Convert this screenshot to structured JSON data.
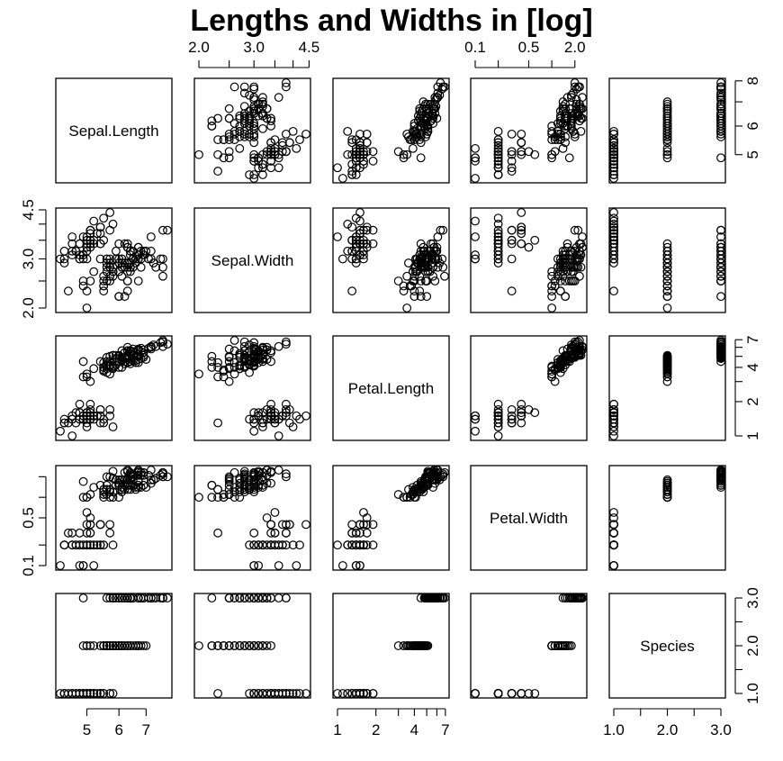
{
  "chart_data": {
    "type": "scatter",
    "title": "Lengths and Widths in [log]",
    "variables": [
      "Sepal.Length",
      "Sepal.Width",
      "Petal.Length",
      "Petal.Width",
      "Species"
    ],
    "log_scale": [
      true,
      true,
      true,
      true,
      false
    ],
    "ranges": [
      [
        4.3,
        7.9
      ],
      [
        2.0,
        4.4
      ],
      [
        1.0,
        6.9
      ],
      [
        0.1,
        2.5
      ],
      [
        1,
        3
      ]
    ],
    "axis_ticks": [
      {
        "side": "bottom",
        "values": [
          5,
          6,
          7
        ],
        "labels": [
          "5",
          "6",
          "7"
        ]
      },
      {
        "side": "top",
        "values": [
          2.0,
          2.5,
          3.0,
          3.5,
          4.0,
          4.5
        ],
        "labels": [
          "2.0",
          "",
          "3.0",
          "",
          "",
          "4.5"
        ]
      },
      {
        "side": "bottom",
        "values": [
          1,
          2,
          3,
          4,
          5,
          6,
          7
        ],
        "labels": [
          "1",
          "2",
          "",
          "4",
          "",
          "",
          "7"
        ]
      },
      {
        "side": "top",
        "values": [
          0.1,
          0.2,
          0.5,
          1.0,
          2.0
        ],
        "labels": [
          "0.1",
          "",
          "0.5",
          "",
          "2.0"
        ]
      },
      {
        "side": "bottom",
        "values": [
          1.0,
          1.5,
          2.0,
          2.5,
          3.0
        ],
        "labels": [
          "1.0",
          "",
          "2.0",
          "",
          "3.0"
        ]
      }
    ],
    "row_ticks": [
      {
        "side": "right",
        "values": [
          5,
          6,
          7,
          8
        ],
        "labels": [
          "5",
          "6",
          "",
          "8"
        ]
      },
      {
        "side": "left",
        "values": [
          2.0,
          2.5,
          3.0,
          3.5,
          4.0,
          4.5
        ],
        "labels": [
          "2.0",
          "",
          "3.0",
          "",
          "",
          "4.5"
        ]
      },
      {
        "side": "right",
        "values": [
          1,
          2,
          3,
          4,
          5,
          6,
          7
        ],
        "labels": [
          "1",
          "2",
          "",
          "4",
          "",
          "",
          "7"
        ]
      },
      {
        "side": "left",
        "values": [
          0.1,
          0.2,
          0.5,
          1.0,
          2.0
        ],
        "labels": [
          "0.1",
          "",
          "0.5",
          "",
          ""
        ]
      },
      {
        "side": "right",
        "values": [
          1.0,
          1.5,
          2.0,
          2.5,
          3.0
        ],
        "labels": [
          "1.0",
          "",
          "2.0",
          "",
          "3.0"
        ]
      }
    ],
    "records": [
      [
        5.1,
        3.5,
        1.4,
        0.2,
        1
      ],
      [
        4.9,
        3.0,
        1.4,
        0.2,
        1
      ],
      [
        4.7,
        3.2,
        1.3,
        0.2,
        1
      ],
      [
        4.6,
        3.1,
        1.5,
        0.2,
        1
      ],
      [
        5.0,
        3.6,
        1.4,
        0.2,
        1
      ],
      [
        5.4,
        3.9,
        1.7,
        0.4,
        1
      ],
      [
        4.6,
        3.4,
        1.4,
        0.3,
        1
      ],
      [
        5.0,
        3.4,
        1.5,
        0.2,
        1
      ],
      [
        4.4,
        2.9,
        1.4,
        0.2,
        1
      ],
      [
        4.9,
        3.1,
        1.5,
        0.1,
        1
      ],
      [
        5.4,
        3.7,
        1.5,
        0.2,
        1
      ],
      [
        4.8,
        3.4,
        1.6,
        0.2,
        1
      ],
      [
        4.8,
        3.0,
        1.4,
        0.1,
        1
      ],
      [
        4.3,
        3.0,
        1.1,
        0.1,
        1
      ],
      [
        5.8,
        4.0,
        1.2,
        0.2,
        1
      ],
      [
        5.7,
        4.4,
        1.5,
        0.4,
        1
      ],
      [
        5.4,
        3.9,
        1.3,
        0.4,
        1
      ],
      [
        5.1,
        3.5,
        1.4,
        0.3,
        1
      ],
      [
        5.7,
        3.8,
        1.7,
        0.3,
        1
      ],
      [
        5.1,
        3.8,
        1.5,
        0.3,
        1
      ],
      [
        5.4,
        3.4,
        1.7,
        0.2,
        1
      ],
      [
        5.1,
        3.7,
        1.5,
        0.4,
        1
      ],
      [
        4.6,
        3.6,
        1.0,
        0.2,
        1
      ],
      [
        5.1,
        3.3,
        1.7,
        0.5,
        1
      ],
      [
        4.8,
        3.4,
        1.9,
        0.2,
        1
      ],
      [
        5.0,
        3.0,
        1.6,
        0.2,
        1
      ],
      [
        5.0,
        3.4,
        1.6,
        0.4,
        1
      ],
      [
        5.2,
        3.5,
        1.5,
        0.2,
        1
      ],
      [
        5.2,
        3.4,
        1.4,
        0.2,
        1
      ],
      [
        4.7,
        3.2,
        1.6,
        0.2,
        1
      ],
      [
        4.8,
        3.1,
        1.6,
        0.2,
        1
      ],
      [
        5.4,
        3.4,
        1.5,
        0.4,
        1
      ],
      [
        5.2,
        4.1,
        1.5,
        0.1,
        1
      ],
      [
        5.5,
        4.2,
        1.4,
        0.2,
        1
      ],
      [
        4.9,
        3.1,
        1.5,
        0.2,
        1
      ],
      [
        5.0,
        3.2,
        1.2,
        0.2,
        1
      ],
      [
        5.5,
        3.5,
        1.3,
        0.2,
        1
      ],
      [
        4.9,
        3.6,
        1.4,
        0.1,
        1
      ],
      [
        4.4,
        3.0,
        1.3,
        0.2,
        1
      ],
      [
        5.1,
        3.4,
        1.5,
        0.2,
        1
      ],
      [
        5.0,
        3.5,
        1.3,
        0.3,
        1
      ],
      [
        4.5,
        2.3,
        1.3,
        0.3,
        1
      ],
      [
        4.4,
        3.2,
        1.3,
        0.2,
        1
      ],
      [
        5.0,
        3.5,
        1.6,
        0.6,
        1
      ],
      [
        5.1,
        3.8,
        1.9,
        0.4,
        1
      ],
      [
        4.8,
        3.0,
        1.4,
        0.3,
        1
      ],
      [
        5.1,
        3.8,
        1.6,
        0.2,
        1
      ],
      [
        4.6,
        3.2,
        1.4,
        0.2,
        1
      ],
      [
        5.3,
        3.7,
        1.5,
        0.2,
        1
      ],
      [
        5.0,
        3.3,
        1.4,
        0.2,
        1
      ],
      [
        7.0,
        3.2,
        4.7,
        1.4,
        2
      ],
      [
        6.4,
        3.2,
        4.5,
        1.5,
        2
      ],
      [
        6.9,
        3.1,
        4.9,
        1.5,
        2
      ],
      [
        5.5,
        2.3,
        4.0,
        1.3,
        2
      ],
      [
        6.5,
        2.8,
        4.6,
        1.5,
        2
      ],
      [
        5.7,
        2.8,
        4.5,
        1.3,
        2
      ],
      [
        6.3,
        3.3,
        4.7,
        1.6,
        2
      ],
      [
        4.9,
        2.4,
        3.3,
        1.0,
        2
      ],
      [
        6.6,
        2.9,
        4.6,
        1.3,
        2
      ],
      [
        5.2,
        2.7,
        3.9,
        1.4,
        2
      ],
      [
        5.0,
        2.0,
        3.5,
        1.0,
        2
      ],
      [
        5.9,
        3.0,
        4.2,
        1.5,
        2
      ],
      [
        6.0,
        2.2,
        4.0,
        1.0,
        2
      ],
      [
        6.1,
        2.9,
        4.7,
        1.4,
        2
      ],
      [
        5.6,
        2.9,
        3.6,
        1.3,
        2
      ],
      [
        6.7,
        3.1,
        4.4,
        1.4,
        2
      ],
      [
        5.6,
        3.0,
        4.5,
        1.5,
        2
      ],
      [
        5.8,
        2.7,
        4.1,
        1.0,
        2
      ],
      [
        6.2,
        2.2,
        4.5,
        1.5,
        2
      ],
      [
        5.6,
        2.5,
        3.9,
        1.1,
        2
      ],
      [
        5.9,
        3.2,
        4.8,
        1.8,
        2
      ],
      [
        6.1,
        2.8,
        4.0,
        1.3,
        2
      ],
      [
        6.3,
        2.5,
        4.9,
        1.5,
        2
      ],
      [
        6.1,
        2.8,
        4.7,
        1.2,
        2
      ],
      [
        6.4,
        2.9,
        4.3,
        1.3,
        2
      ],
      [
        6.6,
        3.0,
        4.4,
        1.4,
        2
      ],
      [
        6.8,
        2.8,
        4.8,
        1.4,
        2
      ],
      [
        6.7,
        3.0,
        5.0,
        1.7,
        2
      ],
      [
        6.0,
        2.9,
        4.5,
        1.5,
        2
      ],
      [
        5.7,
        2.6,
        3.5,
        1.0,
        2
      ],
      [
        5.5,
        2.4,
        3.8,
        1.1,
        2
      ],
      [
        5.5,
        2.4,
        3.7,
        1.0,
        2
      ],
      [
        5.8,
        2.7,
        3.9,
        1.2,
        2
      ],
      [
        6.0,
        2.7,
        5.1,
        1.6,
        2
      ],
      [
        5.4,
        3.0,
        4.5,
        1.5,
        2
      ],
      [
        6.0,
        3.4,
        4.5,
        1.6,
        2
      ],
      [
        6.7,
        3.1,
        4.7,
        1.5,
        2
      ],
      [
        6.3,
        2.3,
        4.4,
        1.3,
        2
      ],
      [
        5.6,
        3.0,
        4.1,
        1.3,
        2
      ],
      [
        5.5,
        2.5,
        4.0,
        1.3,
        2
      ],
      [
        5.5,
        2.6,
        4.4,
        1.2,
        2
      ],
      [
        6.1,
        3.0,
        4.6,
        1.4,
        2
      ],
      [
        5.8,
        2.6,
        4.0,
        1.2,
        2
      ],
      [
        5.0,
        2.3,
        3.3,
        1.0,
        2
      ],
      [
        5.6,
        2.7,
        4.2,
        1.3,
        2
      ],
      [
        5.7,
        3.0,
        4.2,
        1.2,
        2
      ],
      [
        5.7,
        2.9,
        4.2,
        1.3,
        2
      ],
      [
        6.2,
        2.9,
        4.3,
        1.3,
        2
      ],
      [
        5.1,
        2.5,
        3.0,
        1.1,
        2
      ],
      [
        5.7,
        2.8,
        4.1,
        1.3,
        2
      ],
      [
        6.3,
        3.3,
        6.0,
        2.5,
        3
      ],
      [
        5.8,
        2.7,
        5.1,
        1.9,
        3
      ],
      [
        7.1,
        3.0,
        5.9,
        2.1,
        3
      ],
      [
        6.3,
        2.9,
        5.6,
        1.8,
        3
      ],
      [
        6.5,
        3.0,
        5.8,
        2.2,
        3
      ],
      [
        7.6,
        3.0,
        6.6,
        2.1,
        3
      ],
      [
        4.9,
        2.5,
        4.5,
        1.7,
        3
      ],
      [
        7.3,
        2.9,
        6.3,
        1.8,
        3
      ],
      [
        6.7,
        2.5,
        5.8,
        1.8,
        3
      ],
      [
        7.2,
        3.6,
        6.1,
        2.5,
        3
      ],
      [
        6.5,
        3.2,
        5.1,
        2.0,
        3
      ],
      [
        6.4,
        2.7,
        5.3,
        1.9,
        3
      ],
      [
        6.8,
        3.0,
        5.5,
        2.1,
        3
      ],
      [
        5.7,
        2.5,
        5.0,
        2.0,
        3
      ],
      [
        5.8,
        2.8,
        5.1,
        2.4,
        3
      ],
      [
        6.4,
        3.2,
        5.3,
        2.3,
        3
      ],
      [
        6.5,
        3.0,
        5.5,
        1.8,
        3
      ],
      [
        7.7,
        3.8,
        6.7,
        2.2,
        3
      ],
      [
        7.7,
        2.6,
        6.9,
        2.3,
        3
      ],
      [
        6.0,
        2.2,
        5.0,
        1.5,
        3
      ],
      [
        6.9,
        3.2,
        5.7,
        2.3,
        3
      ],
      [
        5.6,
        2.8,
        4.9,
        2.0,
        3
      ],
      [
        7.7,
        2.8,
        6.7,
        2.0,
        3
      ],
      [
        6.3,
        2.7,
        4.9,
        1.8,
        3
      ],
      [
        6.7,
        3.3,
        5.7,
        2.1,
        3
      ],
      [
        7.2,
        3.2,
        6.0,
        1.8,
        3
      ],
      [
        6.2,
        2.8,
        4.8,
        1.8,
        3
      ],
      [
        6.1,
        3.0,
        4.9,
        1.8,
        3
      ],
      [
        6.4,
        2.8,
        5.6,
        2.1,
        3
      ],
      [
        7.2,
        3.0,
        5.8,
        1.6,
        3
      ],
      [
        7.4,
        2.8,
        6.1,
        1.9,
        3
      ],
      [
        7.9,
        3.8,
        6.4,
        2.0,
        3
      ],
      [
        6.4,
        2.8,
        5.6,
        2.2,
        3
      ],
      [
        6.3,
        2.8,
        5.1,
        1.5,
        3
      ],
      [
        6.1,
        2.6,
        5.6,
        1.4,
        3
      ],
      [
        7.7,
        3.0,
        6.1,
        2.3,
        3
      ],
      [
        6.3,
        3.4,
        5.6,
        2.4,
        3
      ],
      [
        6.4,
        3.1,
        5.5,
        1.8,
        3
      ],
      [
        6.0,
        3.0,
        4.8,
        1.8,
        3
      ],
      [
        6.9,
        3.1,
        5.4,
        2.1,
        3
      ],
      [
        6.7,
        3.1,
        5.6,
        2.4,
        3
      ],
      [
        6.9,
        3.1,
        5.1,
        2.3,
        3
      ],
      [
        5.8,
        2.7,
        5.1,
        1.9,
        3
      ],
      [
        6.8,
        3.2,
        5.9,
        2.3,
        3
      ],
      [
        6.7,
        3.3,
        5.7,
        2.5,
        3
      ],
      [
        6.7,
        3.0,
        5.2,
        2.3,
        3
      ],
      [
        6.3,
        2.5,
        5.0,
        1.9,
        3
      ],
      [
        6.5,
        3.0,
        5.2,
        2.0,
        3
      ],
      [
        6.2,
        3.4,
        5.4,
        2.3,
        3
      ],
      [
        5.9,
        3.0,
        5.1,
        1.8,
        3
      ]
    ]
  }
}
